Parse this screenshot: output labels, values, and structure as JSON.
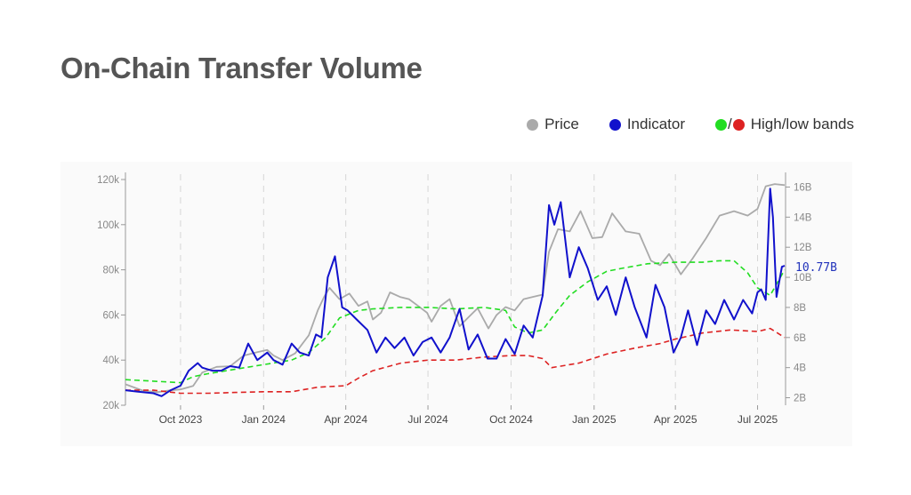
{
  "title": "On-Chain Transfer Volume",
  "legend": {
    "price_label": "Price",
    "indicator_label": "Indicator",
    "bands_slash": "/",
    "bands_label": "High/low bands"
  },
  "colors": {
    "price": "#aaaaaa",
    "indicator": "#1111cc",
    "high_band": "#22dd22",
    "low_band": "#dd2222",
    "gridline": "#d6d6d6"
  },
  "chart_data": {
    "type": "line",
    "title": "On-Chain Transfer Volume",
    "x_start": "2023-08-01",
    "x_end": "2025-08-01",
    "x_ticks": [
      {
        "date": "2023-10-01",
        "label": "Oct 2023"
      },
      {
        "date": "2024-01-01",
        "label": "Jan 2024"
      },
      {
        "date": "2024-04-01",
        "label": "Apr 2024"
      },
      {
        "date": "2024-07-01",
        "label": "Jul 2024"
      },
      {
        "date": "2024-10-01",
        "label": "Oct 2024"
      },
      {
        "date": "2025-01-01",
        "label": "Jan 2025"
      },
      {
        "date": "2025-04-01",
        "label": "Apr 2025"
      },
      {
        "date": "2025-07-01",
        "label": "Jul 2025"
      }
    ],
    "y_left": {
      "range": [
        20000,
        120000
      ],
      "ticks": [
        {
          "value": 20000,
          "label": "20k"
        },
        {
          "value": 40000,
          "label": "40k"
        },
        {
          "value": 60000,
          "label": "60k"
        },
        {
          "value": 80000,
          "label": "80k"
        },
        {
          "value": 100000,
          "label": "100k"
        },
        {
          "value": 120000,
          "label": "120k"
        }
      ]
    },
    "y_right": {
      "range": [
        1.5,
        16.5
      ],
      "ticks": [
        {
          "value": 2,
          "label": "2B"
        },
        {
          "value": 4,
          "label": "4B"
        },
        {
          "value": 6,
          "label": "6B"
        },
        {
          "value": 8,
          "label": "8B"
        },
        {
          "value": 10,
          "label": "10B"
        },
        {
          "value": 12,
          "label": "12B"
        },
        {
          "value": 14,
          "label": "14B"
        },
        {
          "value": 16,
          "label": "16B"
        }
      ]
    },
    "last_value_label": "10.77B",
    "last_value": 10.77,
    "grid": "vertical dashed at x ticks",
    "legend_position": "top-right",
    "series": [
      {
        "name": "Price",
        "axis": "left",
        "x": [
          "2023-08-01",
          "2023-08-20",
          "2023-09-05",
          "2023-09-20",
          "2023-10-01",
          "2023-10-15",
          "2023-10-25",
          "2023-11-10",
          "2023-11-25",
          "2023-12-10",
          "2023-12-25",
          "2024-01-05",
          "2024-01-12",
          "2024-01-22",
          "2024-02-05",
          "2024-02-20",
          "2024-03-01",
          "2024-03-08",
          "2024-03-14",
          "2024-03-25",
          "2024-04-05",
          "2024-04-15",
          "2024-04-25",
          "2024-05-01",
          "2024-05-10",
          "2024-05-20",
          "2024-05-31",
          "2024-06-10",
          "2024-06-20",
          "2024-06-30",
          "2024-07-05",
          "2024-07-15",
          "2024-07-25",
          "2024-08-05",
          "2024-08-15",
          "2024-08-25",
          "2024-09-06",
          "2024-09-15",
          "2024-09-25",
          "2024-10-05",
          "2024-10-15",
          "2024-10-25",
          "2024-11-05",
          "2024-11-12",
          "2024-11-22",
          "2024-12-05",
          "2024-12-17",
          "2024-12-30",
          "2025-01-10",
          "2025-01-21",
          "2025-02-05",
          "2025-02-20",
          "2025-03-05",
          "2025-03-15",
          "2025-03-25",
          "2025-04-07",
          "2025-04-20",
          "2025-05-05",
          "2025-05-20",
          "2025-06-05",
          "2025-06-20",
          "2025-07-01",
          "2025-07-10",
          "2025-07-20",
          "2025-07-31"
        ],
        "y": [
          29300,
          26500,
          25800,
          26600,
          27000,
          28600,
          34500,
          37000,
          37300,
          42000,
          43500,
          44500,
          42000,
          40000,
          43000,
          51000,
          62000,
          68000,
          72000,
          67000,
          69500,
          64000,
          66000,
          58000,
          61000,
          70000,
          68000,
          67000,
          64000,
          61000,
          57000,
          64000,
          67000,
          55000,
          59000,
          63000,
          54000,
          60000,
          63500,
          62000,
          67000,
          68000,
          69000,
          88000,
          98000,
          97000,
          106000,
          94000,
          94500,
          105000,
          97000,
          96000,
          84000,
          82000,
          87000,
          78000,
          85000,
          94000,
          104000,
          106000,
          104000,
          107000,
          117000,
          118000,
          117500
        ]
      },
      {
        "name": "Indicator",
        "axis": "right",
        "x": [
          "2023-08-01",
          "2023-08-15",
          "2023-09-01",
          "2023-09-10",
          "2023-09-20",
          "2023-10-01",
          "2023-10-10",
          "2023-10-20",
          "2023-10-25",
          "2023-11-05",
          "2023-11-15",
          "2023-11-25",
          "2023-12-05",
          "2023-12-15",
          "2023-12-25",
          "2024-01-05",
          "2024-01-12",
          "2024-01-22",
          "2024-02-01",
          "2024-02-10",
          "2024-02-20",
          "2024-02-28",
          "2024-03-05",
          "2024-03-12",
          "2024-03-20",
          "2024-03-28",
          "2024-04-03",
          "2024-04-13",
          "2024-04-25",
          "2024-05-05",
          "2024-05-15",
          "2024-05-25",
          "2024-06-05",
          "2024-06-15",
          "2024-06-25",
          "2024-07-05",
          "2024-07-15",
          "2024-07-25",
          "2024-08-05",
          "2024-08-15",
          "2024-08-25",
          "2024-09-05",
          "2024-09-15",
          "2024-09-25",
          "2024-10-05",
          "2024-10-15",
          "2024-10-25",
          "2024-11-05",
          "2024-11-12",
          "2024-11-18",
          "2024-11-25",
          "2024-12-05",
          "2024-12-15",
          "2024-12-25",
          "2025-01-05",
          "2025-01-15",
          "2025-01-25",
          "2025-02-05",
          "2025-02-15",
          "2025-02-28",
          "2025-03-10",
          "2025-03-20",
          "2025-03-30",
          "2025-04-07",
          "2025-04-15",
          "2025-04-25",
          "2025-05-05",
          "2025-05-15",
          "2025-05-25",
          "2025-06-05",
          "2025-06-15",
          "2025-06-25",
          "2025-07-01",
          "2025-07-05",
          "2025-07-10",
          "2025-07-15",
          "2025-07-18",
          "2025-07-22",
          "2025-07-28",
          "2025-07-31"
        ],
        "y": [
          2.5,
          2.4,
          2.3,
          2.1,
          2.5,
          2.8,
          3.8,
          4.3,
          4.0,
          3.8,
          3.8,
          4.1,
          4.0,
          5.6,
          4.5,
          5.0,
          4.5,
          4.2,
          5.6,
          5.0,
          4.8,
          6.2,
          6.0,
          10.0,
          11.4,
          8.0,
          7.8,
          7.2,
          6.5,
          5.0,
          6.0,
          5.3,
          6.0,
          4.8,
          5.7,
          6.0,
          5.0,
          6.0,
          7.9,
          5.2,
          6.2,
          4.6,
          4.6,
          5.9,
          4.9,
          6.8,
          6.0,
          8.8,
          14.8,
          13.5,
          15.0,
          10.0,
          12.0,
          10.6,
          8.5,
          9.4,
          7.5,
          10.0,
          8.0,
          6.0,
          9.5,
          8.0,
          5.0,
          6.0,
          7.8,
          5.5,
          7.8,
          6.9,
          8.5,
          7.2,
          8.5,
          7.6,
          9.0,
          9.2,
          8.5,
          15.9,
          14.0,
          8.7,
          10.7,
          10.77
        ]
      },
      {
        "name": "High band",
        "axis": "right",
        "x": [
          "2023-08-01",
          "2023-09-01",
          "2023-10-01",
          "2023-10-15",
          "2023-11-01",
          "2023-12-01",
          "2024-01-01",
          "2024-02-01",
          "2024-02-20",
          "2024-03-10",
          "2024-03-25",
          "2024-04-15",
          "2024-05-01",
          "2024-06-01",
          "2024-07-01",
          "2024-08-01",
          "2024-09-01",
          "2024-09-25",
          "2024-10-05",
          "2024-10-20",
          "2024-11-05",
          "2024-11-20",
          "2024-12-05",
          "2024-12-25",
          "2025-01-15",
          "2025-02-01",
          "2025-03-01",
          "2025-04-01",
          "2025-05-01",
          "2025-05-20",
          "2025-06-05",
          "2025-06-20",
          "2025-07-01",
          "2025-07-15",
          "2025-07-31"
        ],
        "y": [
          3.2,
          3.1,
          3.0,
          3.4,
          3.6,
          3.9,
          4.2,
          4.5,
          5.0,
          6.0,
          7.3,
          7.8,
          7.9,
          8.0,
          8.0,
          7.9,
          8.0,
          7.8,
          6.7,
          6.3,
          6.5,
          7.7,
          8.8,
          9.7,
          10.4,
          10.6,
          10.9,
          11.0,
          11.0,
          11.1,
          11.1,
          10.3,
          9.3,
          8.8,
          10.5
        ]
      },
      {
        "name": "Low band",
        "axis": "right",
        "x": [
          "2023-08-01",
          "2023-09-01",
          "2023-10-01",
          "2023-11-01",
          "2023-12-01",
          "2024-01-01",
          "2024-02-01",
          "2024-03-01",
          "2024-04-01",
          "2024-04-15",
          "2024-05-01",
          "2024-06-01",
          "2024-07-01",
          "2024-08-01",
          "2024-09-01",
          "2024-10-01",
          "2024-10-20",
          "2024-11-05",
          "2024-11-15",
          "2024-12-15",
          "2025-01-15",
          "2025-02-15",
          "2025-03-15",
          "2025-04-01",
          "2025-05-01",
          "2025-06-01",
          "2025-07-01",
          "2025-07-15",
          "2025-07-31"
        ],
        "y": [
          2.5,
          2.5,
          2.3,
          2.3,
          2.35,
          2.4,
          2.4,
          2.7,
          2.8,
          3.3,
          3.8,
          4.3,
          4.5,
          4.5,
          4.7,
          4.8,
          4.8,
          4.6,
          4.0,
          4.3,
          4.9,
          5.3,
          5.6,
          5.9,
          6.3,
          6.5,
          6.4,
          6.6,
          6.0
        ]
      }
    ]
  }
}
